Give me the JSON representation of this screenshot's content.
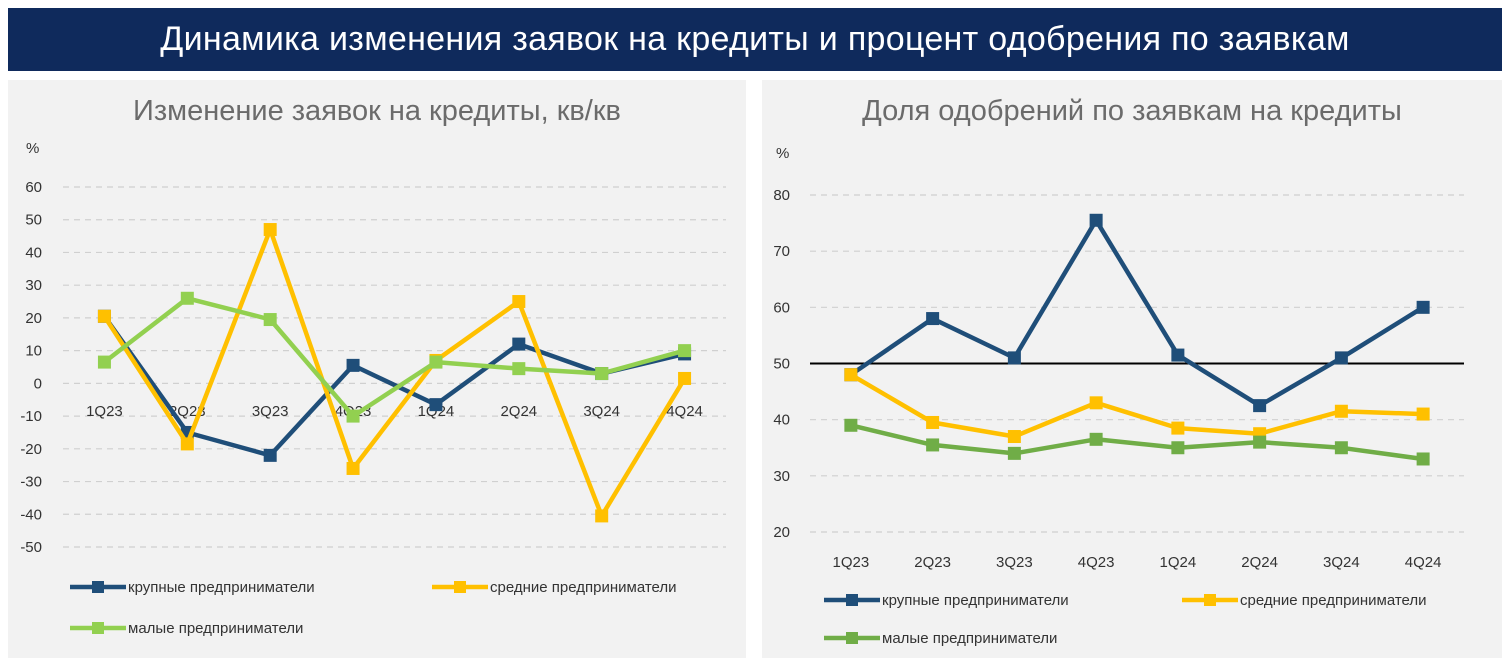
{
  "header": {
    "title": "Динамика изменения заявок на кредиты и процент одобрения по заявкам"
  },
  "colors": {
    "banner": "#0f2a5c",
    "large": "#1f4e79",
    "medium": "#ffc000",
    "small": "#92d050",
    "small_dark": "#70ad47"
  },
  "chart_data": [
    {
      "type": "line",
      "title": "Изменение заявок на кредиты, кв/кв",
      "ylabel": "%",
      "ylim": [
        -50,
        60
      ],
      "yticks": [
        "60",
        "50",
        "40",
        "30",
        "20",
        "10",
        "0",
        "-10",
        "-20",
        "-30",
        "-40",
        "-50"
      ],
      "grid": true,
      "categories": [
        "1Q23",
        "2Q23",
        "3Q23",
        "4Q23",
        "1Q24",
        "2Q24",
        "3Q24",
        "4Q24"
      ],
      "series": [
        {
          "name": "крупные предприниматели",
          "values": [
            20.5,
            -15,
            -22,
            5.5,
            -6.5,
            12,
            3,
            9
          ]
        },
        {
          "name": "средние предприниматели",
          "values": [
            20.5,
            -18.5,
            47,
            -26,
            7,
            25,
            -40.5,
            1.5
          ]
        },
        {
          "name": "малые предприниматели",
          "values": [
            6.5,
            26,
            19.5,
            -10,
            6.5,
            4.5,
            3,
            10
          ]
        }
      ],
      "legend": "bottom"
    },
    {
      "type": "line",
      "title": "Доля одобрений по заявкам на кредиты",
      "ylabel": "%",
      "ylim": [
        20,
        80
      ],
      "yticks": [
        "80",
        "70",
        "60",
        "50",
        "40",
        "30",
        "20"
      ],
      "grid": true,
      "reference_line": 50,
      "categories": [
        "1Q23",
        "2Q23",
        "3Q23",
        "4Q23",
        "1Q24",
        "2Q24",
        "3Q24",
        "4Q24"
      ],
      "series": [
        {
          "name": "крупные предприниматели",
          "values": [
            48,
            58,
            51,
            75.5,
            51.5,
            42.5,
            51,
            60
          ]
        },
        {
          "name": "средние предприниматели",
          "values": [
            48,
            39.5,
            37,
            43,
            38.5,
            37.5,
            41.5,
            41
          ]
        },
        {
          "name": "малые предприниматели",
          "values": [
            39,
            35.5,
            34,
            36.5,
            35,
            36,
            35,
            33
          ]
        }
      ],
      "legend": "bottom"
    }
  ]
}
